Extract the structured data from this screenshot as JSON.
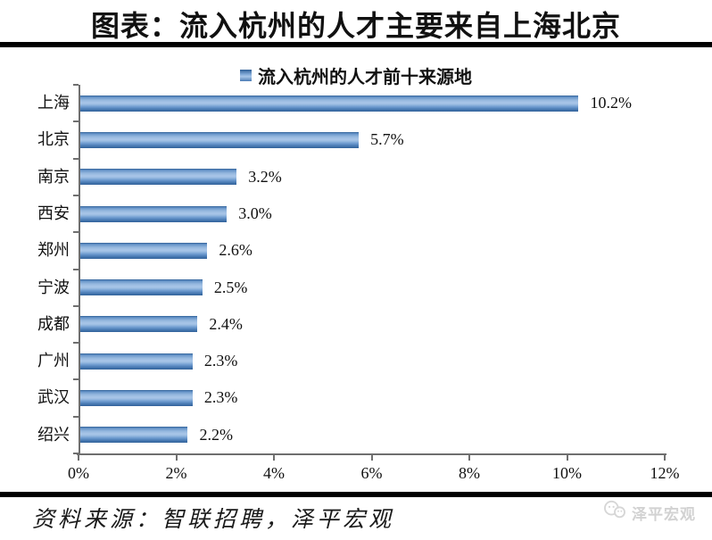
{
  "title": "图表：流入杭州的人才主要来自上海北京",
  "legend": {
    "label": "流入杭州的人才前十来源地",
    "marker_color": "#4f81bd"
  },
  "chart_data": {
    "type": "bar",
    "orientation": "horizontal",
    "title": "流入杭州的人才前十来源地",
    "categories": [
      "上海",
      "北京",
      "南京",
      "西安",
      "郑州",
      "宁波",
      "成都",
      "广州",
      "武汉",
      "绍兴"
    ],
    "values": [
      10.2,
      5.7,
      3.2,
      3.0,
      2.6,
      2.5,
      2.4,
      2.3,
      2.3,
      2.2
    ],
    "value_labels": [
      "10.2%",
      "5.7%",
      "3.2%",
      "3.0%",
      "2.6%",
      "2.5%",
      "2.4%",
      "2.3%",
      "2.3%",
      "2.2%"
    ],
    "xlabel": "",
    "ylabel": "",
    "xlim": [
      0,
      12
    ],
    "x_ticks": [
      "0%",
      "2%",
      "4%",
      "6%",
      "8%",
      "10%",
      "12%"
    ],
    "x_tick_values": [
      0,
      2,
      4,
      6,
      8,
      10,
      12
    ],
    "bar_color": "#4f81bd",
    "axis_color": "#6f6f6f",
    "grid": false,
    "legend_position": "top"
  },
  "footer": {
    "source": "资料来源：智联招聘，泽平宏观",
    "watermark": "泽平宏观"
  }
}
